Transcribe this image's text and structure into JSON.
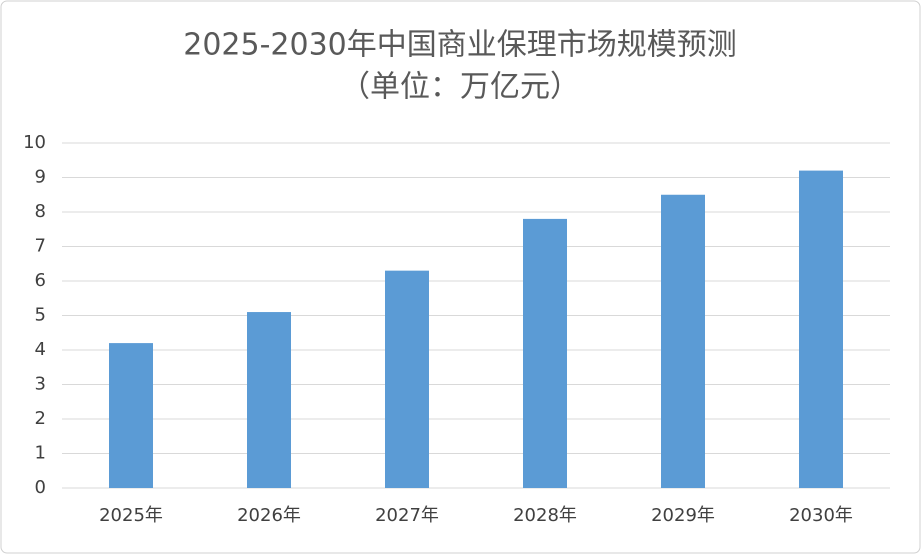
{
  "chart_data": {
    "type": "bar",
    "title": "2025-2030年中国商业保理市场规模预测",
    "subtitle": "（单位：万亿元）",
    "categories": [
      "2025年",
      "2026年",
      "2027年",
      "2028年",
      "2029年",
      "2030年"
    ],
    "values": [
      4.2,
      5.1,
      6.3,
      7.8,
      8.5,
      9.2
    ],
    "color": "#5b9bd5",
    "ylim": [
      0,
      10
    ],
    "yticks": [
      0,
      1,
      2,
      3,
      4,
      5,
      6,
      7,
      8,
      9,
      10
    ],
    "grid": true
  }
}
